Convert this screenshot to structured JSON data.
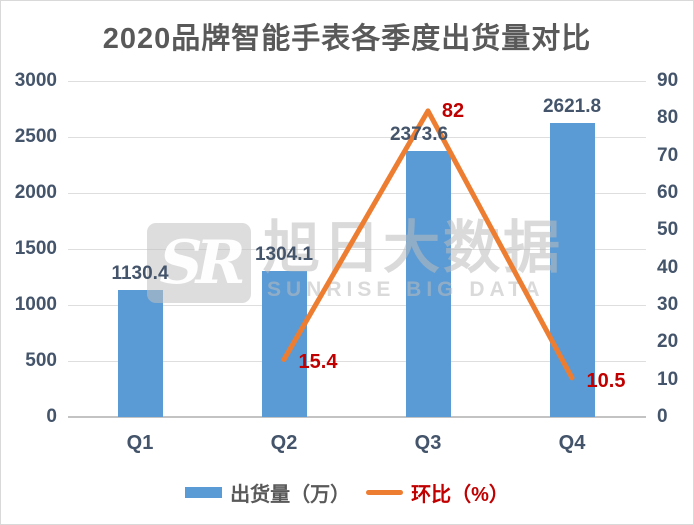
{
  "title": "2020品牌智能手表各季度出货量对比",
  "colors": {
    "bar": "#5B9BD5",
    "line": "#ED7D31",
    "line_label": "#C00000",
    "text_dark": "#44546A",
    "title_text": "#595959",
    "gridline": "#DEDEDE",
    "watermark": "#BCBCBC"
  },
  "chart_data": {
    "type": "bar",
    "subtype": "combo bar+line, dual axis",
    "title": "2020品牌智能手表各季度出货量对比",
    "categories": [
      "Q1",
      "Q2",
      "Q3",
      "Q4"
    ],
    "series": [
      {
        "name": "出货量（万）",
        "type": "bar",
        "axis": "left",
        "values": [
          1130.4,
          1304.1,
          2373.6,
          2621.8
        ],
        "labels": [
          "1130.4",
          "1304.1",
          "2373.6",
          "2621.8"
        ]
      },
      {
        "name": "环比（%）",
        "type": "line",
        "axis": "right",
        "values": [
          null,
          15.4,
          82,
          10.5
        ],
        "labels": [
          "",
          "15.4",
          "82",
          "10.5"
        ]
      }
    ],
    "left_axis": {
      "min": 0,
      "max": 3000,
      "step": 500,
      "ticks": [
        0,
        500,
        1000,
        1500,
        2000,
        2500,
        3000
      ]
    },
    "right_axis": {
      "min": 0,
      "max": 90,
      "step": 10,
      "ticks": [
        0,
        10,
        20,
        30,
        40,
        50,
        60,
        70,
        80,
        90
      ]
    },
    "grid": true,
    "legend_position": "bottom"
  },
  "legend": {
    "bar_label": "出货量（万）",
    "line_label": "环比（%）"
  },
  "watermark": {
    "logo_text": "SR",
    "cjk_text": "旭日大数据",
    "latin_text": "SUNRISE BIG DATA"
  }
}
